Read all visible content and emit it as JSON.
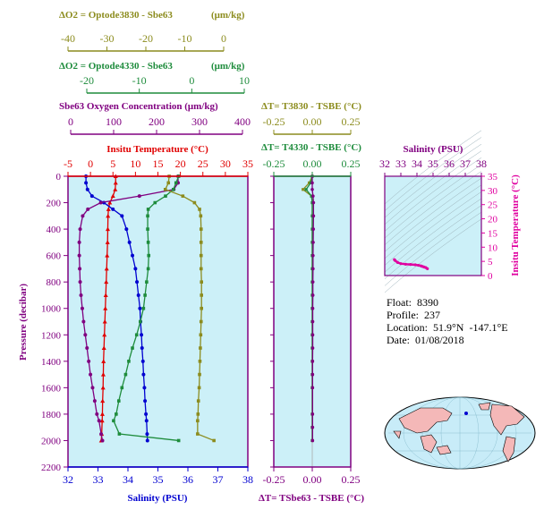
{
  "colors": {
    "o2_3830": "#8c8c1e",
    "o2_4330": "#1e8c3c",
    "sbe63": "#800080",
    "temperature": "#e00000",
    "salinity": "#0000d0",
    "ts_curve": "#e000a0",
    "panel_bg": "#ccf0f8",
    "land": "#f4b8b8",
    "map_ocean": "#c8ecf8"
  },
  "axes": {
    "o2_3830": {
      "label": "ΔO2 = Optode3830 - Sbe63",
      "unit": "(μm/kg)",
      "ticks": [
        "-40",
        "-30",
        "-20",
        "-10",
        "0"
      ]
    },
    "o2_4330": {
      "label": "ΔO2 = Optode4330 - Sbe63",
      "unit": "(μm/kg)",
      "ticks": [
        "-20",
        "-10",
        "0",
        "10"
      ]
    },
    "sbe63": {
      "label": "Sbe63 Oxygen Concentration (μm/kg)",
      "ticks": [
        "0",
        "100",
        "200",
        "300",
        "400"
      ]
    },
    "temperature": {
      "label": "Insitu Temperature (°C)",
      "ticks": [
        "-5",
        "0",
        "5",
        "10",
        "15",
        "20",
        "25",
        "30",
        "35"
      ]
    },
    "salinity": {
      "label": "Salinity (PSU)",
      "ticks": [
        "32",
        "33",
        "34",
        "35",
        "36",
        "37",
        "38"
      ]
    },
    "pressure": {
      "label": "Pressure (decibar)",
      "ticks": [
        "0",
        "200",
        "400",
        "600",
        "800",
        "1000",
        "1200",
        "1400",
        "1600",
        "1800",
        "2000",
        "2200"
      ]
    },
    "dt_3830": {
      "label": "ΔT= T3830 - TSBE (°C)",
      "ticks": [
        "-0.25",
        "0.00",
        "0.25"
      ]
    },
    "dt_4330": {
      "label": "ΔT= T4330 - TSBE (°C)",
      "ticks": [
        "-0.25",
        "0.00",
        "0.25"
      ]
    },
    "dt_sbe63": {
      "label": "ΔT= TSbe63 - TSBE (°C)",
      "ticks": [
        "-0.25",
        "0.00",
        "0.25"
      ]
    },
    "ts_salinity": {
      "label": "Salinity (PSU)",
      "ticks": [
        "32",
        "33",
        "34",
        "35",
        "36",
        "37",
        "38"
      ]
    },
    "ts_temperature": {
      "label": "Insitu Temperature (°C)",
      "ticks": [
        "0",
        "5",
        "10",
        "15",
        "20",
        "25",
        "30",
        "35"
      ]
    }
  },
  "info": {
    "float": "Float:  8390",
    "profile": "Profile:  237",
    "location": "Location:  51.9°N  -147.1°E",
    "date": "Date:  01/08/2018"
  },
  "chart_data": [
    {
      "type": "line",
      "title": "",
      "ylabel": "Pressure (decibar)",
      "ylim": [
        2200,
        0
      ],
      "series": [
        {
          "name": "Insitu Temperature (°C)",
          "axis": "temperature",
          "xlim": [
            -5,
            35
          ],
          "x": [
            5.6,
            5.6,
            5.5,
            5.0,
            4.3,
            4.0,
            3.9,
            3.85,
            3.8,
            3.7,
            3.6,
            3.5,
            3.4,
            3.3,
            3.2,
            3.1,
            3.0,
            2.9,
            2.85,
            2.8,
            2.7,
            2.65,
            2.6,
            2.5,
            2.4
          ],
          "y": [
            0,
            50,
            100,
            150,
            200,
            250,
            300,
            400,
            500,
            600,
            700,
            800,
            900,
            1000,
            1100,
            1200,
            1300,
            1400,
            1500,
            1600,
            1700,
            1800,
            1850,
            1950,
            2000
          ]
        },
        {
          "name": "Salinity (PSU)",
          "axis": "salinity",
          "xlim": [
            32,
            38
          ],
          "x": [
            32.6,
            32.6,
            32.65,
            32.8,
            33.2,
            33.5,
            33.8,
            33.95,
            34.05,
            34.15,
            34.25,
            34.3,
            34.35,
            34.4,
            34.42,
            34.45,
            34.47,
            34.5,
            34.52,
            34.55,
            34.57,
            34.6,
            34.62,
            34.64,
            34.65
          ],
          "y": [
            0,
            50,
            100,
            150,
            200,
            250,
            300,
            400,
            500,
            600,
            700,
            800,
            900,
            1000,
            1100,
            1200,
            1300,
            1400,
            1500,
            1600,
            1700,
            1800,
            1850,
            1950,
            2000
          ]
        },
        {
          "name": "Sbe63 Oxygen Concentration (μm/kg)",
          "axis": "sbe63",
          "xlim": [
            0,
            400
          ],
          "x": [
            250,
            250,
            240,
            160,
            70,
            40,
            28,
            22,
            20,
            20,
            21,
            22,
            24,
            27,
            30,
            34,
            38,
            42,
            46,
            51,
            56,
            61,
            66,
            71,
            74
          ],
          "y": [
            0,
            50,
            100,
            150,
            200,
            250,
            300,
            400,
            500,
            600,
            700,
            800,
            900,
            1000,
            1100,
            1200,
            1300,
            1400,
            1500,
            1600,
            1700,
            1800,
            1850,
            1950,
            2000
          ]
        },
        {
          "name": "ΔO2 = Optode4330 - Sbe63",
          "axis": "o2_4330",
          "xlim": [
            -30,
            10
          ],
          "x": [
            -2.5,
            -3.0,
            -3.5,
            -5.0,
            -7.0,
            -8.3,
            -8.4,
            -8.4,
            -8.3,
            -8.2,
            -8.3,
            -8.6,
            -8.9,
            -9.2,
            -9.8,
            -10.5,
            -11.3,
            -12.0,
            -12.6,
            -13.3,
            -13.9,
            -14.4,
            -14.9,
            -13.8,
            -2.5
          ],
          "y": [
            0,
            50,
            100,
            150,
            200,
            250,
            300,
            400,
            500,
            600,
            700,
            800,
            900,
            1000,
            1100,
            1200,
            1300,
            1400,
            1500,
            1600,
            1700,
            1800,
            1850,
            1950,
            2000
          ]
        },
        {
          "name": "ΔO2 = Optode3830 - Sbe63",
          "axis": "o2_3830",
          "xlim": [
            -40,
            0
          ],
          "x": [
            -14.0,
            -14.2,
            -15.0,
            -10.5,
            -7.5,
            -6.2,
            -5.9,
            -5.8,
            -5.8,
            -5.8,
            -5.8,
            -5.7,
            -5.7,
            -5.7,
            -5.8,
            -5.9,
            -6.0,
            -6.1,
            -6.2,
            -6.3,
            -6.5,
            -6.6,
            -6.7,
            -6.7,
            -2.5
          ],
          "y": [
            0,
            50,
            100,
            150,
            200,
            250,
            300,
            400,
            500,
            600,
            700,
            800,
            900,
            1000,
            1100,
            1200,
            1300,
            1400,
            1500,
            1600,
            1700,
            1800,
            1850,
            1950,
            2000
          ]
        }
      ]
    },
    {
      "type": "line",
      "xlabel": "ΔT= TSbe63 - TSBE (°C)",
      "xlim": [
        -0.25,
        0.25
      ],
      "ylim": [
        2200,
        0
      ],
      "series": [
        {
          "name": "ΔT= T3830 - TSBE (°C)",
          "x": [
            0.0,
            -0.02,
            -0.06,
            -0.005,
            0.0,
            0.0,
            0.0,
            0.0,
            0.0,
            0.0,
            0.0,
            0.0,
            0.0,
            0.0,
            0.0,
            0.0,
            0.0,
            0.0,
            0.0,
            0.0,
            0.0,
            0.0
          ],
          "y": [
            0,
            50,
            100,
            150,
            200,
            300,
            400,
            500,
            600,
            700,
            800,
            900,
            1000,
            1100,
            1200,
            1300,
            1400,
            1500,
            1600,
            1800,
            1900,
            2000
          ]
        },
        {
          "name": "ΔT= T4330 - TSBE (°C)",
          "x": [
            0.0,
            -0.01,
            -0.04,
            -0.005,
            0.0,
            0.0,
            0.0,
            0.0,
            0.0,
            0.0,
            0.0,
            0.0,
            0.0,
            0.0,
            0.0,
            0.0,
            0.0,
            0.0,
            0.0,
            0.0,
            0.0,
            0.0
          ],
          "y": [
            0,
            50,
            100,
            150,
            200,
            300,
            400,
            500,
            600,
            700,
            800,
            900,
            1000,
            1100,
            1200,
            1300,
            1400,
            1500,
            1600,
            1800,
            1900,
            2000
          ]
        },
        {
          "name": "ΔT= TSbe63 - TSBE (°C)",
          "x": [
            0.0,
            0.0,
            0.0,
            0.005,
            0.008,
            0.008,
            0.007,
            0.006,
            0.005,
            0.005,
            0.004,
            0.004,
            0.003,
            0.003,
            0.003,
            0.003,
            0.002,
            0.002,
            0.002,
            0.002,
            0.002,
            0.002
          ],
          "y": [
            0,
            50,
            100,
            150,
            200,
            300,
            400,
            500,
            600,
            700,
            800,
            900,
            1000,
            1100,
            1200,
            1300,
            1400,
            1500,
            1600,
            1800,
            1900,
            2000
          ]
        }
      ]
    },
    {
      "type": "scatter",
      "xlabel": "Salinity (PSU)",
      "ylabel": "Insitu Temperature (°C)",
      "xlim": [
        32,
        38
      ],
      "ylim": [
        0,
        35
      ],
      "series": [
        {
          "name": "",
          "x": [
            32.6,
            32.65,
            32.8,
            33.0,
            33.3,
            33.6,
            33.9,
            34.1,
            34.25,
            34.35,
            34.45,
            34.55,
            34.65
          ],
          "y": [
            5.6,
            5.3,
            4.6,
            4.2,
            4.0,
            3.9,
            3.8,
            3.6,
            3.4,
            3.2,
            3.0,
            2.8,
            2.4
          ]
        }
      ]
    }
  ]
}
